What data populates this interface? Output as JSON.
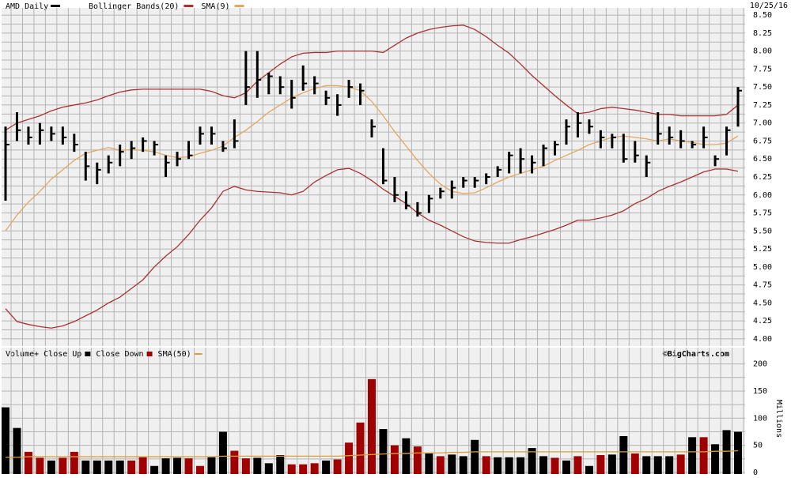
{
  "chart_data": [
    {
      "type": "ohlc",
      "title": "AMD Daily",
      "date": "10/25/16",
      "color": "#000000",
      "high": [
        6.95,
        7.15,
        6.95,
        7.0,
        6.95,
        6.95,
        6.85,
        6.6,
        6.45,
        6.55,
        6.7,
        6.75,
        6.8,
        6.75,
        6.55,
        6.6,
        6.75,
        6.95,
        6.95,
        6.75,
        7.05,
        8.0,
        8.0,
        7.7,
        7.65,
        7.6,
        7.8,
        7.65,
        7.45,
        7.4,
        7.6,
        7.55,
        7.05,
        6.65,
        6.25,
        6.05,
        5.9,
        6.0,
        6.1,
        6.2,
        6.25,
        6.25,
        6.3,
        6.4,
        6.6,
        6.65,
        6.55,
        6.7,
        6.75,
        7.05,
        7.15,
        7.05,
        6.9,
        6.85,
        6.85,
        6.75,
        6.55,
        7.15,
        6.95,
        6.9,
        6.75,
        6.95,
        6.55,
        6.95,
        7.5
      ],
      "low": [
        5.92,
        6.75,
        6.7,
        6.7,
        6.75,
        6.7,
        6.6,
        6.2,
        6.15,
        6.3,
        6.4,
        6.5,
        6.6,
        6.55,
        6.25,
        6.4,
        6.5,
        6.7,
        6.7,
        6.6,
        6.65,
        7.25,
        7.35,
        7.4,
        7.4,
        7.2,
        7.45,
        7.4,
        7.25,
        7.1,
        7.35,
        7.25,
        6.8,
        6.15,
        5.9,
        5.8,
        5.7,
        5.75,
        5.95,
        5.95,
        6.1,
        6.1,
        6.15,
        6.25,
        6.3,
        6.3,
        6.3,
        6.4,
        6.55,
        6.7,
        6.8,
        6.85,
        6.65,
        6.65,
        6.45,
        6.45,
        6.25,
        6.7,
        6.7,
        6.65,
        6.65,
        6.65,
        6.4,
        6.55,
        6.95
      ],
      "close": [
        6.7,
        6.9,
        6.8,
        6.9,
        6.85,
        6.8,
        6.7,
        6.4,
        6.35,
        6.45,
        6.6,
        6.65,
        6.75,
        6.7,
        6.45,
        6.5,
        6.55,
        6.85,
        6.85,
        6.65,
        6.75,
        7.5,
        7.6,
        7.65,
        7.5,
        7.35,
        7.55,
        7.55,
        7.35,
        7.25,
        7.5,
        7.45,
        6.95,
        6.2,
        6.0,
        5.85,
        5.75,
        5.95,
        6.05,
        6.1,
        6.2,
        6.2,
        6.25,
        6.35,
        6.55,
        6.5,
        6.45,
        6.65,
        6.7,
        6.95,
        7.0,
        6.95,
        6.8,
        6.8,
        6.5,
        6.55,
        6.45,
        6.85,
        6.8,
        6.75,
        6.7,
        6.8,
        6.5,
        6.9,
        7.45
      ],
      "series": [
        {
          "name": "Bollinger Bands(20)",
          "color": "#a83232",
          "values": [
            6.9,
            7.0,
            7.05,
            7.1,
            7.17,
            7.22,
            7.25,
            7.28,
            7.32,
            7.38,
            7.43,
            7.46,
            7.47,
            7.47,
            7.47,
            7.47,
            7.47,
            7.47,
            7.44,
            7.38,
            7.35,
            7.42,
            7.58,
            7.7,
            7.82,
            7.92,
            7.97,
            7.98,
            7.98,
            8.0,
            8.0,
            8.0,
            8.0,
            7.98,
            8.08,
            8.18,
            8.25,
            8.3,
            8.33,
            8.35,
            8.36,
            8.3,
            8.2,
            8.08,
            7.97,
            7.82,
            7.66,
            7.52,
            7.38,
            7.25,
            7.13,
            7.15,
            7.2,
            7.22,
            7.2,
            7.18,
            7.15,
            7.12,
            7.12,
            7.1,
            7.1,
            7.1,
            7.1,
            7.12,
            7.25
          ],
          "lower": [
            4.42,
            4.24,
            4.2,
            4.17,
            4.15,
            4.18,
            4.24,
            4.32,
            4.4,
            4.5,
            4.58,
            4.7,
            4.82,
            5.0,
            5.15,
            5.28,
            5.45,
            5.65,
            5.82,
            6.05,
            6.12,
            6.07,
            6.05,
            6.04,
            6.03,
            6.0,
            6.05,
            6.18,
            6.27,
            6.35,
            6.37,
            6.3,
            6.2,
            6.08,
            5.98,
            5.88,
            5.75,
            5.65,
            5.58,
            5.5,
            5.42,
            5.36,
            5.34,
            5.33,
            5.33,
            5.38,
            5.42,
            5.47,
            5.52,
            5.58,
            5.65,
            5.65,
            5.68,
            5.72,
            5.78,
            5.88,
            5.95,
            6.05,
            6.12,
            6.18,
            6.25,
            6.32,
            6.36,
            6.36,
            6.33
          ]
        },
        {
          "name": "SMA(9)",
          "color": "#e0a860",
          "values": [
            5.5,
            5.72,
            5.9,
            6.05,
            6.22,
            6.35,
            6.48,
            6.58,
            6.62,
            6.66,
            6.62,
            6.63,
            6.62,
            6.6,
            6.55,
            6.52,
            6.53,
            6.58,
            6.62,
            6.68,
            6.8,
            6.9,
            7.02,
            7.15,
            7.25,
            7.35,
            7.42,
            7.48,
            7.52,
            7.52,
            7.5,
            7.45,
            7.3,
            7.1,
            6.88,
            6.68,
            6.48,
            6.3,
            6.15,
            6.05,
            6.02,
            6.03,
            6.1,
            6.18,
            6.25,
            6.3,
            6.35,
            6.4,
            6.48,
            6.55,
            6.62,
            6.7,
            6.75,
            6.8,
            6.82,
            6.8,
            6.78,
            6.75,
            6.78,
            6.75,
            6.73,
            6.7,
            6.7,
            6.72,
            6.82
          ]
        }
      ],
      "ylim": [
        3.9,
        8.6
      ],
      "yticks": [
        {
          "value": 4,
          "label": "4.00"
        },
        {
          "value": 4.25,
          "label": "4.25"
        },
        {
          "value": 4.5,
          "label": "4.50"
        },
        {
          "value": 4.75,
          "label": "4.75"
        },
        {
          "value": 5,
          "label": "5.00"
        },
        {
          "value": 5.25,
          "label": "5.25"
        },
        {
          "value": 5.5,
          "label": "5.50"
        },
        {
          "value": 5.75,
          "label": "5.75"
        },
        {
          "value": 6,
          "label": "6.00"
        },
        {
          "value": 6.25,
          "label": "6.25"
        },
        {
          "value": 6.5,
          "label": "6.50"
        },
        {
          "value": 6.75,
          "label": "6.75"
        },
        {
          "value": 7,
          "label": "7.00"
        },
        {
          "value": 7.25,
          "label": "7.25"
        },
        {
          "value": 7.5,
          "label": "7.50"
        },
        {
          "value": 7.75,
          "label": "7.75"
        },
        {
          "value": 8,
          "label": "8.00"
        },
        {
          "value": 8.25,
          "label": "8.25"
        },
        {
          "value": 8.5,
          "label": "8.50"
        }
      ],
      "grid": true
    },
    {
      "type": "bar",
      "title": "Volume+",
      "up_name": "Close Up",
      "up_color": "#000000",
      "down_name": "Close Down",
      "down_color": "#a00000",
      "credit": "©BigCharts.com",
      "ylabel": "Millions",
      "values": [
        120,
        82,
        38,
        27,
        22,
        27,
        38,
        22,
        22,
        22,
        22,
        22,
        28,
        12,
        26,
        27,
        26,
        12,
        28,
        75,
        40,
        26,
        27,
        17,
        32,
        15,
        15,
        17,
        22,
        24,
        55,
        92,
        172,
        80,
        50,
        63,
        48,
        35,
        30,
        33,
        30,
        60,
        30,
        28,
        28,
        28,
        45,
        30,
        27,
        22,
        30,
        12,
        32,
        33,
        67,
        35,
        30,
        30,
        30,
        33,
        65,
        65,
        52,
        78,
        75
      ],
      "up": [
        true,
        true,
        false,
        false,
        true,
        false,
        false,
        true,
        true,
        true,
        true,
        false,
        false,
        true,
        true,
        true,
        false,
        false,
        true,
        true,
        false,
        false,
        true,
        true,
        true,
        false,
        false,
        false,
        true,
        false,
        false,
        false,
        false,
        true,
        false,
        true,
        false,
        true,
        false,
        true,
        true,
        true,
        false,
        true,
        true,
        true,
        true,
        true,
        false,
        true,
        false,
        true,
        false,
        true,
        true,
        false,
        true,
        true,
        true,
        false,
        true,
        false,
        true,
        true,
        true
      ],
      "series": [
        {
          "name": "SMA(50)",
          "color": "#d9a040",
          "values": [
            28,
            28,
            29,
            29,
            29,
            29,
            29,
            29,
            29,
            29,
            29,
            29,
            29,
            29,
            29,
            29,
            29,
            29,
            29,
            30,
            30,
            30,
            30,
            30,
            30,
            30,
            30,
            30,
            30,
            30,
            31,
            32,
            33,
            34,
            35,
            35,
            36,
            36,
            36,
            37,
            37,
            38,
            38,
            38,
            38,
            38,
            38,
            38,
            38,
            38,
            38,
            38,
            38,
            38,
            38,
            38,
            38,
            38,
            38,
            38,
            38,
            38,
            39,
            39,
            40
          ]
        }
      ],
      "ylim": [
        0,
        230
      ],
      "yticks": [
        0,
        50,
        100,
        150,
        200
      ],
      "grid": true
    }
  ]
}
